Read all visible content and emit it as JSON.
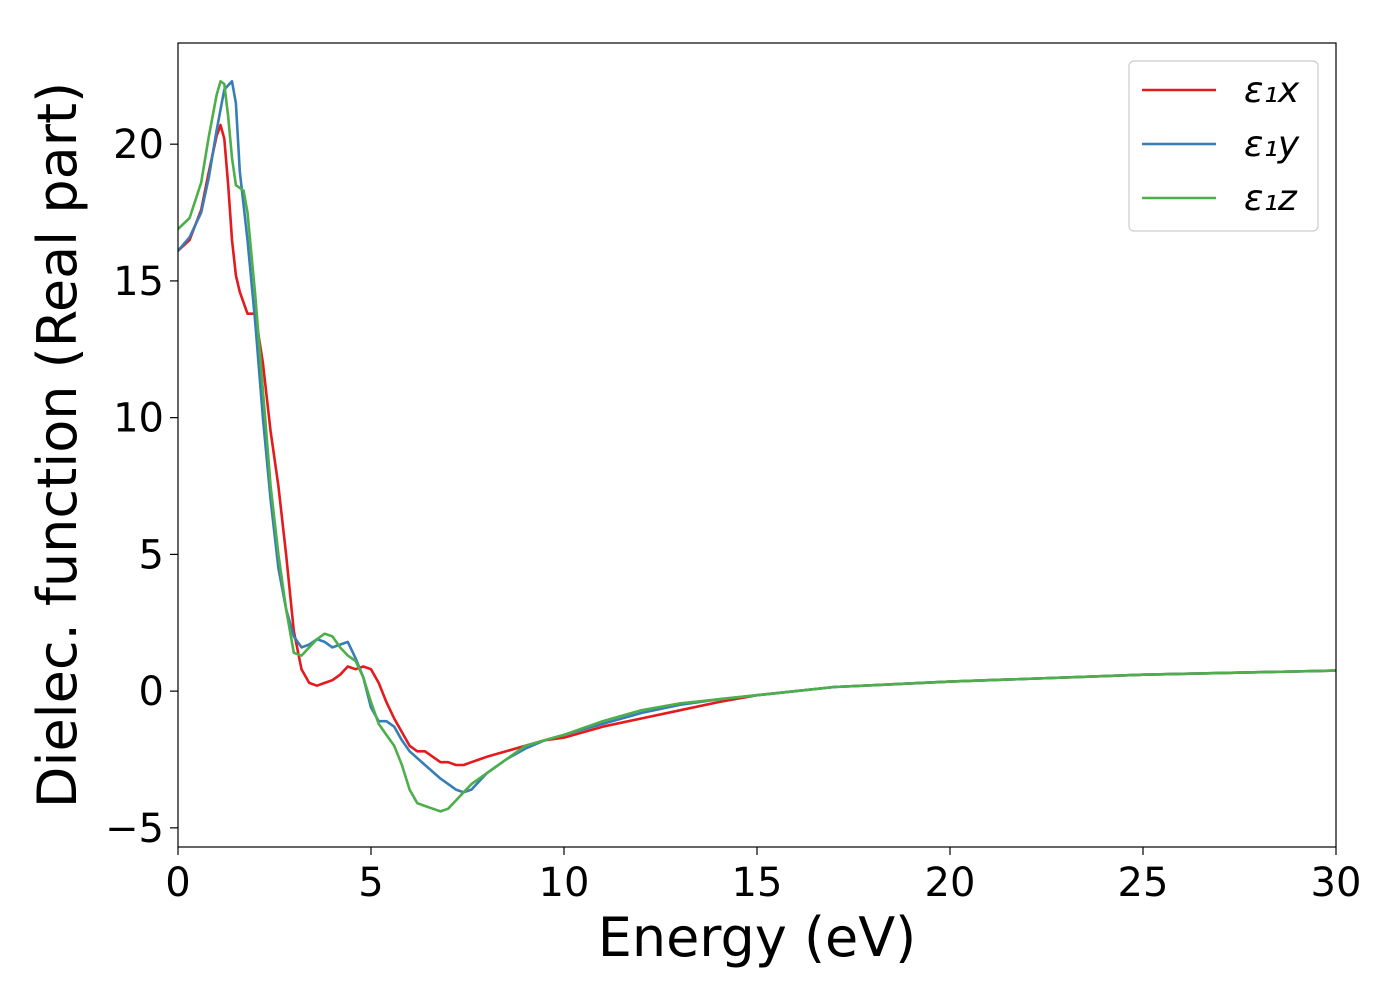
{
  "chart_data": {
    "type": "line",
    "title": "",
    "xlabel": "Energy (eV)",
    "ylabel": "Dielec. function (Real part)",
    "xlim": [
      0,
      30
    ],
    "ylim": [
      -5.7,
      23.7
    ],
    "xticks": [
      0,
      5,
      10,
      15,
      20,
      25,
      30
    ],
    "xtick_labels": [
      "0",
      "5",
      "10",
      "15",
      "20",
      "25",
      "30"
    ],
    "yticks": [
      -5,
      0,
      5,
      10,
      15,
      20
    ],
    "ytick_labels": [
      "−5",
      "0",
      "5",
      "10",
      "15",
      "20"
    ],
    "grid": false,
    "legend_position": "top-right",
    "series": [
      {
        "name": "ε₁x",
        "color": "#e41a1c",
        "x": [
          0,
          0.3,
          0.6,
          0.8,
          1.0,
          1.1,
          1.2,
          1.3,
          1.4,
          1.5,
          1.6,
          1.8,
          2.0,
          2.2,
          2.4,
          2.6,
          2.8,
          3.0,
          3.2,
          3.4,
          3.6,
          3.8,
          4.0,
          4.2,
          4.4,
          4.6,
          4.8,
          5.0,
          5.2,
          5.4,
          5.6,
          5.8,
          6.0,
          6.2,
          6.4,
          6.6,
          6.8,
          7.0,
          7.2,
          7.4,
          7.6,
          7.8,
          8.0,
          8.5,
          9.0,
          9.5,
          10,
          11,
          12,
          13,
          14,
          15,
          17,
          20,
          25,
          30
        ],
        "y": [
          16.1,
          16.5,
          17.6,
          19.0,
          20.3,
          20.7,
          20.2,
          18.5,
          16.5,
          15.2,
          14.6,
          13.8,
          13.8,
          12.0,
          9.5,
          7.5,
          5.0,
          2.2,
          0.8,
          0.3,
          0.2,
          0.3,
          0.4,
          0.6,
          0.9,
          0.8,
          0.9,
          0.8,
          0.3,
          -0.4,
          -1.0,
          -1.5,
          -2.0,
          -2.2,
          -2.2,
          -2.4,
          -2.6,
          -2.6,
          -2.7,
          -2.7,
          -2.6,
          -2.5,
          -2.4,
          -2.2,
          -2.0,
          -1.8,
          -1.7,
          -1.3,
          -1.0,
          -0.7,
          -0.4,
          -0.15,
          0.15,
          0.35,
          0.6,
          0.75
        ]
      },
      {
        "name": "ε₁y",
        "color": "#377eb8",
        "x": [
          0,
          0.3,
          0.6,
          0.8,
          1.0,
          1.2,
          1.4,
          1.5,
          1.6,
          1.8,
          2.0,
          2.2,
          2.4,
          2.6,
          2.8,
          3.0,
          3.2,
          3.4,
          3.6,
          3.8,
          4.0,
          4.2,
          4.4,
          4.6,
          4.8,
          5.0,
          5.2,
          5.4,
          5.6,
          5.8,
          6.0,
          6.4,
          6.8,
          7.2,
          7.4,
          7.6,
          8.0,
          8.5,
          9.0,
          9.5,
          10,
          11,
          12,
          13,
          14,
          15,
          17,
          20,
          25,
          30
        ],
        "y": [
          16.1,
          16.6,
          17.5,
          18.8,
          20.5,
          22.0,
          22.3,
          21.5,
          19.0,
          16.5,
          13.5,
          10.0,
          7.0,
          4.5,
          3.0,
          2.0,
          1.6,
          1.7,
          1.9,
          1.8,
          1.6,
          1.7,
          1.8,
          1.2,
          0.5,
          -0.6,
          -1.1,
          -1.1,
          -1.3,
          -1.8,
          -2.2,
          -2.7,
          -3.2,
          -3.6,
          -3.7,
          -3.6,
          -3.0,
          -2.5,
          -2.1,
          -1.8,
          -1.6,
          -1.2,
          -0.8,
          -0.5,
          -0.3,
          -0.15,
          0.15,
          0.35,
          0.6,
          0.75
        ]
      },
      {
        "name": "ε₁z",
        "color": "#4daf4a",
        "x": [
          0,
          0.3,
          0.6,
          0.8,
          1.0,
          1.1,
          1.2,
          1.3,
          1.4,
          1.5,
          1.6,
          1.7,
          1.8,
          2.0,
          2.2,
          2.4,
          2.6,
          2.8,
          3.0,
          3.2,
          3.4,
          3.6,
          3.8,
          4.0,
          4.2,
          4.4,
          4.6,
          4.8,
          5.0,
          5.2,
          5.4,
          5.6,
          5.8,
          6.0,
          6.2,
          6.4,
          6.6,
          6.8,
          7.0,
          7.2,
          7.4,
          7.6,
          8.0,
          8.5,
          9.0,
          9.5,
          10,
          11,
          12,
          13,
          14,
          15,
          17,
          20,
          25,
          30
        ],
        "y": [
          16.9,
          17.3,
          18.6,
          20.3,
          21.8,
          22.3,
          22.2,
          21.0,
          19.5,
          18.5,
          18.4,
          18.3,
          17.5,
          14.5,
          11.0,
          7.5,
          5.0,
          3.0,
          1.4,
          1.3,
          1.6,
          1.9,
          2.1,
          2.0,
          1.6,
          1.3,
          1.1,
          0.5,
          -0.4,
          -1.2,
          -1.6,
          -2.0,
          -2.7,
          -3.6,
          -4.1,
          -4.2,
          -4.3,
          -4.4,
          -4.3,
          -4.0,
          -3.7,
          -3.4,
          -3.0,
          -2.5,
          -2.0,
          -1.8,
          -1.6,
          -1.1,
          -0.7,
          -0.45,
          -0.3,
          -0.15,
          0.15,
          0.35,
          0.6,
          0.75
        ]
      }
    ]
  }
}
